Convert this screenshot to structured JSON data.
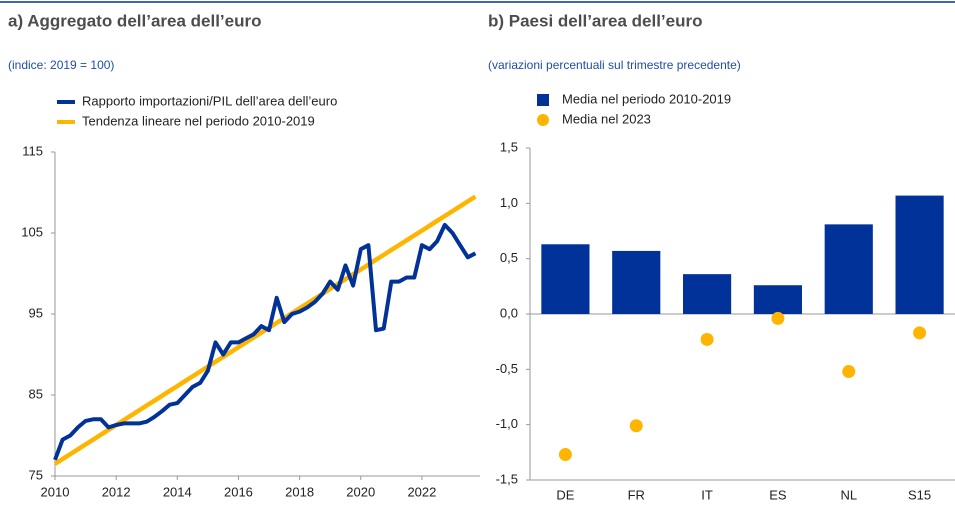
{
  "chart_data": [
    {
      "type": "line",
      "title": "a) Aggregato dell’area dell’euro",
      "subtitle": "(indice: 2019 = 100)",
      "x": [
        2010,
        2010.25,
        2010.5,
        2010.75,
        2011,
        2011.25,
        2011.5,
        2011.75,
        2012,
        2012.25,
        2012.5,
        2012.75,
        2013,
        2013.25,
        2013.5,
        2013.75,
        2014,
        2014.25,
        2014.5,
        2014.75,
        2015,
        2015.25,
        2015.5,
        2015.75,
        2016,
        2016.25,
        2016.5,
        2016.75,
        2017,
        2017.25,
        2017.5,
        2017.75,
        2018,
        2018.25,
        2018.5,
        2018.75,
        2019,
        2019.25,
        2019.5,
        2019.75,
        2020,
        2020.25,
        2020.5,
        2020.75,
        2021,
        2021.25,
        2021.5,
        2021.75,
        2022,
        2022.25,
        2022.5,
        2022.75,
        2023,
        2023.25,
        2023.5,
        2023.75
      ],
      "series": [
        {
          "name": "Rapporto importazioni/PIL dell’area dell’euro",
          "color": "#003299",
          "values": [
            77,
            79.5,
            80,
            81,
            81.8,
            82,
            82,
            81,
            81.3,
            81.5,
            81.5,
            81.5,
            81.7,
            82.3,
            83,
            83.8,
            84,
            85,
            86,
            86.5,
            88,
            91.5,
            90,
            91.5,
            91.5,
            92,
            92.5,
            93.5,
            93,
            97,
            94,
            95,
            95.3,
            95.8,
            96.5,
            97.5,
            99,
            98,
            101,
            98.5,
            103,
            103.5,
            93,
            93.2,
            99,
            99,
            99.5,
            99.5,
            103.5,
            103,
            104,
            106,
            105,
            103.5,
            102,
            102.5
          ]
        },
        {
          "name": "Tendenza lineare nel periodo 2010-2019",
          "color": "#ffb400",
          "values": [
            76.5,
            77.1,
            77.7,
            78.3,
            78.9,
            79.5,
            80.1,
            80.7,
            81.3,
            81.9,
            82.5,
            83.1,
            83.7,
            84.3,
            84.9,
            85.5,
            86.1,
            86.7,
            87.3,
            87.9,
            88.5,
            89.1,
            89.7,
            90.3,
            90.9,
            91.5,
            92.1,
            92.7,
            93.3,
            93.9,
            94.5,
            95.1,
            95.7,
            96.3,
            96.9,
            97.5,
            98.1,
            98.7,
            99.3,
            99.9,
            100.5,
            101.1,
            101.7,
            102.3,
            102.9,
            103.5,
            104.1,
            104.7,
            105.3,
            105.9,
            106.5,
            107.1,
            107.7,
            108.3,
            108.9,
            109.5
          ]
        }
      ],
      "xlim": [
        2010,
        2023.9
      ],
      "xticks": [
        2010,
        2012,
        2014,
        2016,
        2018,
        2020,
        2022
      ],
      "ylim": [
        75,
        115
      ],
      "yticks": [
        75,
        85,
        95,
        105,
        115
      ]
    },
    {
      "type": "bar",
      "title": "b) Paesi dell’area dell’euro",
      "subtitle": "(variazioni percentuali sul trimestre precedente)",
      "categories": [
        "DE",
        "FR",
        "IT",
        "ES",
        "NL",
        "S15"
      ],
      "series": [
        {
          "name": "Media nel periodo 2010-2019",
          "color": "#003299",
          "type": "bar",
          "values": [
            0.63,
            0.57,
            0.36,
            0.26,
            0.81,
            1.07
          ]
        },
        {
          "name": "Media nel 2023",
          "color": "#ffb400",
          "type": "scatter",
          "values": [
            -1.27,
            -1.01,
            -0.23,
            -0.04,
            -0.52,
            -0.17
          ]
        }
      ],
      "ylim": [
        -1.5,
        1.5
      ],
      "yticks": [
        {
          "value": -1.5,
          "label": "-1,5"
        },
        {
          "value": -1,
          "label": "-1,0"
        },
        {
          "value": -0.5,
          "label": "-0,5"
        },
        {
          "value": 0,
          "label": "0,0"
        },
        {
          "value": 0.5,
          "label": "0,5"
        },
        {
          "value": 1,
          "label": "1,0"
        },
        {
          "value": 1.5,
          "label": "1,5"
        }
      ]
    }
  ]
}
